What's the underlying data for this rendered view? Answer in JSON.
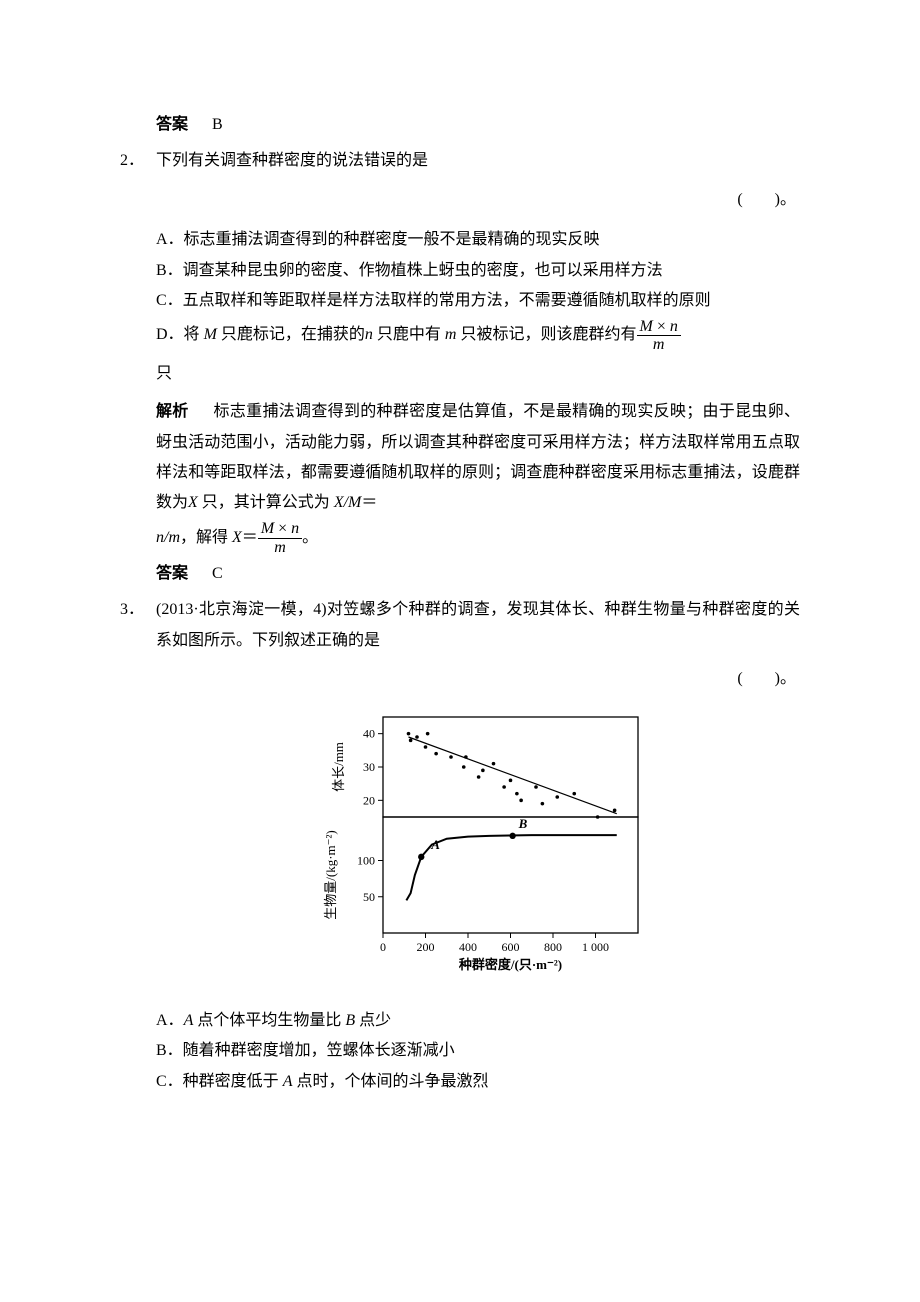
{
  "q1": {
    "answer_label": "答案",
    "answer_value": "B"
  },
  "q2": {
    "number": "2．",
    "stem": "下列有关调查种群密度的说法错误的是",
    "paren": "(　　)。",
    "optA": "A．标志重捕法调查得到的种群密度一般不是最精确的现实反映",
    "optB": "B．调查某种昆虫卵的密度、作物植株上蚜虫的密度，也可以采用样方法",
    "optC": "C．五点取样和等距取样是样方法取样的常用方法，不需要遵循随机取样的原则",
    "optD_pre": "D．将 ",
    "optD_M": "M",
    "optD_mid1": " 只鹿标记，在捕获的",
    "optD_n": "n",
    "optD_mid2": " 只鹿中有 ",
    "optD_m": "m",
    "optD_mid3": " 只被标记，则该鹿群约有",
    "optD_num_M": "M",
    "optD_num_times": " × ",
    "optD_num_n": "n",
    "optD_den": "m",
    "optD_tail": "只",
    "explain_label": "解析",
    "explain1": "标志重捕法调查得到的种群密度是估算值，不是最精确的现实反映；由于昆虫卵、蚜虫活动范围小，活动能力弱，所以调查其种群密度可采用样方法；样方法取样常用五点取样法和等距取样法，都需要遵循随机取样的原则；调查鹿种群密度采用标志重捕法，设鹿群数为",
    "explain_X1": "X",
    "explain_mid1": " 只，其计算公式为 ",
    "explain_XM": "X/M",
    "explain_eq1": "＝",
    "explain_nm": "n/m",
    "explain_mid2": "，解得 ",
    "explain_X2": "X",
    "explain_eq2": "＝",
    "explain_frac_num_M": "M",
    "explain_frac_times": " × ",
    "explain_frac_num_n": "n",
    "explain_frac_den": "m",
    "explain_end": "。",
    "answer_label": "答案",
    "answer_value": "C"
  },
  "q3": {
    "number": "3．",
    "source": "(2013·北京海淀一模，4)",
    "stem": "对笠螺多个种群的调查，发现其体长、种群生物量与种群密度的关系如图所示。下列叙述正确的是",
    "paren": "(　　)。",
    "optA_pre": "A．",
    "optA_A": "A",
    "optA_mid": " 点个体平均生物量比 ",
    "optA_B": "B",
    "optA_tail": " 点少",
    "optB": "B．随着种群密度增加，笠螺体长逐渐减小",
    "optC_pre": "C．种群密度低于 ",
    "optC_A": "A",
    "optC_tail": " 点时，个体间的斗争最激烈"
  },
  "chart": {
    "xlabel": "种群密度/(只·m⁻²)",
    "ylabel_top": "体长/mm",
    "ylabel_bottom": "生物量/(kg·m⁻²)",
    "label_A": "A",
    "label_B": "B",
    "top": {
      "ylim": [
        15,
        45
      ],
      "yticks": [
        20,
        30,
        40
      ],
      "points": [
        [
          120,
          40
        ],
        [
          130,
          38
        ],
        [
          160,
          39
        ],
        [
          200,
          36
        ],
        [
          210,
          40
        ],
        [
          250,
          34
        ],
        [
          320,
          33
        ],
        [
          380,
          30
        ],
        [
          390,
          33
        ],
        [
          450,
          27
        ],
        [
          470,
          29
        ],
        [
          520,
          31
        ],
        [
          570,
          24
        ],
        [
          600,
          26
        ],
        [
          630,
          22
        ],
        [
          650,
          20
        ],
        [
          720,
          24
        ],
        [
          750,
          19
        ],
        [
          820,
          21
        ],
        [
          900,
          22
        ],
        [
          1010,
          15
        ],
        [
          1090,
          17
        ]
      ],
      "line_start": [
        120,
        39
      ],
      "line_end": [
        1100,
        16
      ],
      "point_color": "#000000",
      "line_color": "#000000"
    },
    "bottom": {
      "ylim": [
        0,
        160
      ],
      "yticks": [
        50,
        100
      ],
      "curve": [
        [
          110,
          45
        ],
        [
          130,
          55
        ],
        [
          150,
          80
        ],
        [
          180,
          105
        ],
        [
          230,
          122
        ],
        [
          300,
          130
        ],
        [
          400,
          133
        ],
        [
          500,
          134
        ],
        [
          700,
          135
        ],
        [
          900,
          135
        ],
        [
          1100,
          135
        ]
      ],
      "A_point": [
        180,
        105
      ],
      "B_point": [
        610,
        134
      ],
      "curve_color": "#000000"
    },
    "xlim": [
      0,
      1200
    ],
    "xticks": [
      0,
      200,
      400,
      600,
      800,
      1000
    ],
    "xtick_labels": [
      "0",
      "200",
      "400",
      "600",
      "800",
      "1 000"
    ],
    "border_color": "#000000",
    "font_size_axis": 12,
    "font_size_label": 13
  }
}
